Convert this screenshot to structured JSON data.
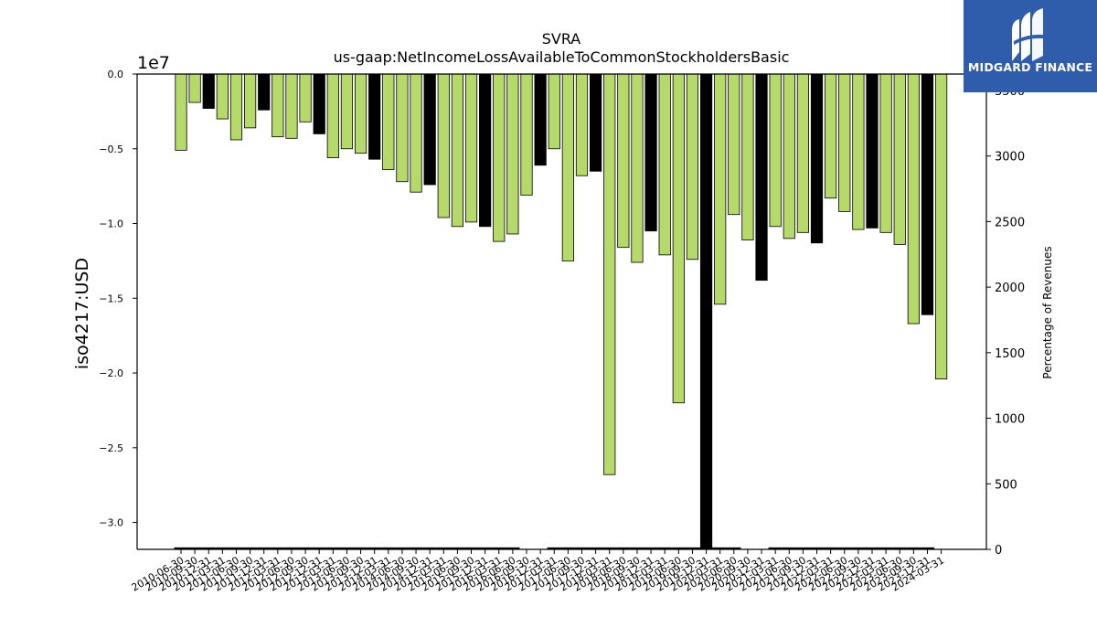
{
  "logo": {
    "text": "MIDGARD FINANCE"
  },
  "chart_data": {
    "type": "bar",
    "title": "SVRA",
    "subtitle": "us-gaap:NetIncomeLossAvailableToCommonStockholdersBasic",
    "ylabel": "iso4217:USD",
    "y_offset_label": "1e7",
    "y_scale": 10000000,
    "ylim": [
      -3.18,
      0
    ],
    "yticks": [
      0.0,
      -0.5,
      -1.0,
      -1.5,
      -2.0,
      -2.5,
      -3.0
    ],
    "ytick_labels": [
      "0.0",
      "−0.5",
      "−1.0",
      "−1.5",
      "−2.0",
      "−2.5",
      "−3.0"
    ],
    "y2label": "Percentage of Revenues",
    "y2lim": [
      0,
      3625
    ],
    "y2ticks": [
      0,
      500,
      1000,
      1500,
      2000,
      2500,
      3000,
      3500
    ],
    "y2tick_labels": [
      "0",
      "500",
      "1000",
      "1500",
      "2000",
      "2500",
      "3000",
      "3500"
    ],
    "colors": {
      "quarter": "#b5d96a",
      "annual": "#000000",
      "edge": "#000000"
    },
    "categories": [
      "2010-06-30",
      "2010-09-30",
      "2010-12-31",
      "2011-03-31",
      "2011-06-30",
      "2011-09-30",
      "2011-12-31",
      "2012-03-31",
      "2012-06-30",
      "2012-09-30",
      "2012-12-31",
      "2013-03-31",
      "2013-06-30",
      "2013-09-30",
      "2013-12-31",
      "2014-03-31",
      "2014-06-30",
      "2014-09-30",
      "2014-12-31",
      "2015-03-31",
      "2015-06-30",
      "2015-09-30",
      "2015-12-31",
      "2016-03-31",
      "2016-06-30",
      "2016-09-30",
      "2016-12-31",
      "2017-03-31",
      "2017-06-30",
      "2017-09-30",
      "2017-12-31",
      "2018-03-31",
      "2018-06-30",
      "2018-09-30",
      "2018-12-31",
      "2019-03-31",
      "2019-06-30",
      "2019-09-30",
      "2019-12-31",
      "2020-03-31",
      "2020-06-30",
      "2020-09-30",
      "2020-12-31",
      "2021-03-31",
      "2021-06-30",
      "2021-09-30",
      "2021-12-31",
      "2022-03-31",
      "2022-06-30",
      "2022-09-30",
      "2022-12-31",
      "2023-03-31",
      "2023-06-30",
      "2023-09-30",
      "2023-12-31",
      "2024-03-31"
    ],
    "series": [
      {
        "values": [
          -0.51,
          -0.19,
          -0.23,
          -0.3,
          -0.44,
          -0.36,
          -0.24,
          -0.42,
          -0.43,
          -0.32,
          -0.4,
          -0.56,
          -0.5,
          -0.53,
          -0.57,
          -0.64,
          -0.72,
          -0.79,
          -0.74,
          -0.96,
          -1.02,
          -0.99,
          -1.02,
          -1.12,
          -1.07,
          -0.81,
          -0.61,
          -0.5,
          -1.25,
          -0.68,
          -0.65,
          -2.68,
          -1.16,
          -1.26,
          -1.05,
          -1.21,
          -2.2,
          -1.24,
          -3.18,
          -1.54,
          -0.94,
          -1.11,
          -1.38,
          -1.02,
          -1.1,
          -1.06,
          -1.13,
          -0.83,
          -0.92,
          -1.04,
          -1.03,
          -1.06,
          -1.14,
          -1.67,
          -1.61,
          -2.04
        ],
        "annual": [
          false,
          false,
          true,
          false,
          false,
          false,
          true,
          false,
          false,
          false,
          true,
          false,
          false,
          false,
          true,
          false,
          false,
          false,
          true,
          false,
          false,
          false,
          true,
          false,
          false,
          false,
          true,
          false,
          false,
          false,
          true,
          false,
          false,
          false,
          true,
          false,
          false,
          false,
          true,
          false,
          false,
          false,
          true,
          false,
          false,
          false,
          true,
          false,
          false,
          false,
          true,
          false,
          false,
          false,
          true,
          false
        ]
      },
      {
        "name": "Percentage of Revenues",
        "values": [
          15,
          15,
          15,
          15,
          15,
          15,
          15,
          15,
          15,
          15,
          15,
          15,
          15,
          15,
          15,
          15,
          15,
          15,
          15,
          15,
          15,
          15,
          15,
          15,
          15,
          null,
          null,
          15,
          15,
          15,
          15,
          15,
          15,
          15,
          15,
          15,
          15,
          15,
          15,
          15,
          15,
          null,
          null,
          15,
          15,
          15,
          15,
          15,
          15,
          15,
          15,
          15,
          15,
          15,
          15,
          null
        ]
      }
    ]
  }
}
